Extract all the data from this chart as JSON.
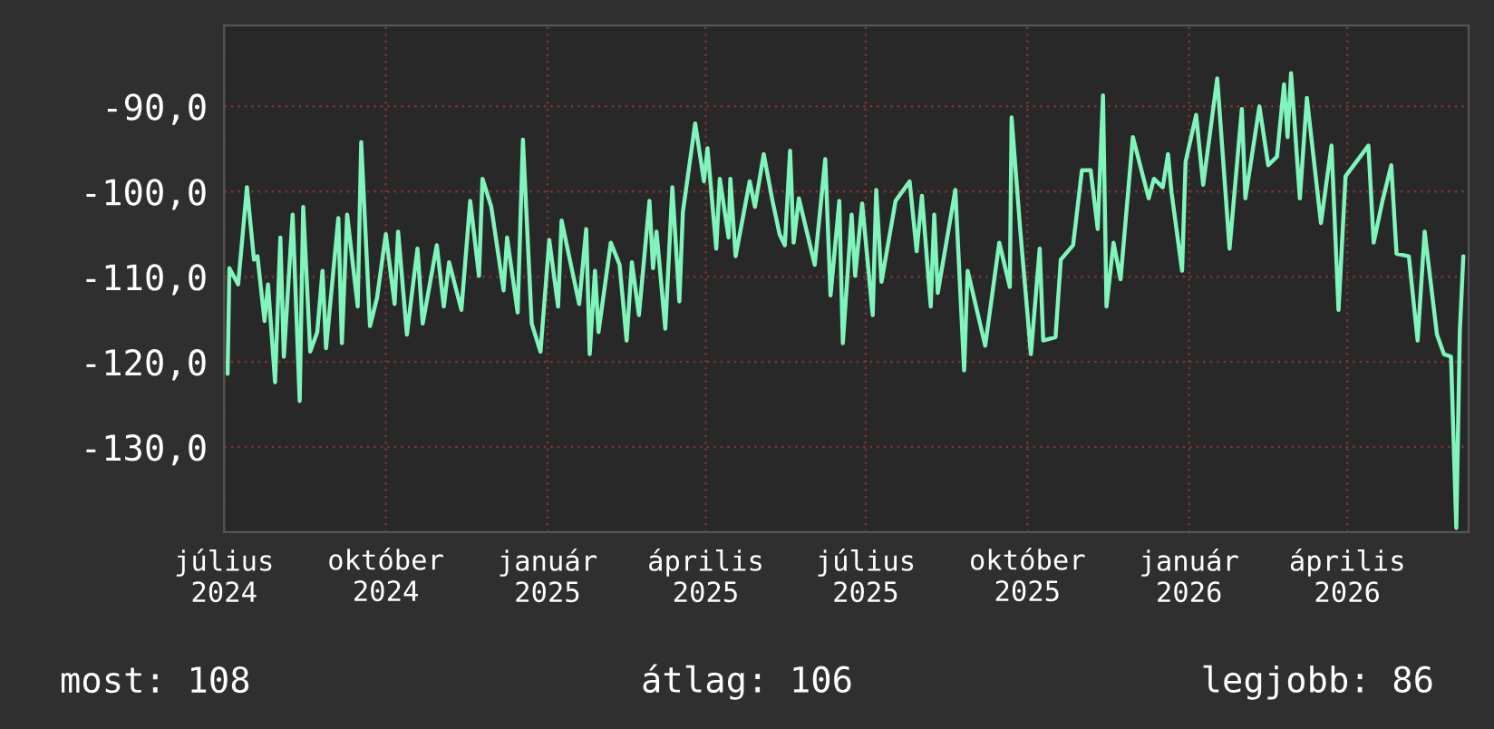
{
  "chart_data": {
    "type": "line",
    "x": [
      "2024-07-03",
      "2024-07-04",
      "2024-07-09",
      "2024-07-14",
      "2024-07-18",
      "2024-07-20",
      "2024-07-24",
      "2024-07-26",
      "2024-07-30",
      "2024-08-02",
      "2024-08-04",
      "2024-08-09",
      "2024-08-13",
      "2024-08-15",
      "2024-08-19",
      "2024-08-23",
      "2024-08-26",
      "2024-08-28",
      "2024-09-04",
      "2024-09-06",
      "2024-09-09",
      "2024-09-15",
      "2024-09-17",
      "2024-09-22",
      "2024-09-26",
      "2024-10-01",
      "2024-10-06",
      "2024-10-08",
      "2024-10-13",
      "2024-10-19",
      "2024-10-22",
      "2024-10-30",
      "2024-11-03",
      "2024-11-06",
      "2024-11-13",
      "2024-11-18",
      "2024-11-23",
      "2024-11-25",
      "2024-11-30",
      "2024-12-07",
      "2024-12-09",
      "2024-12-15",
      "2024-12-18",
      "2024-12-23",
      "2024-12-28",
      "2025-01-02",
      "2025-01-07",
      "2025-01-09",
      "2025-01-19",
      "2025-01-23",
      "2025-01-25",
      "2025-01-28",
      "2025-01-30",
      "2025-02-06",
      "2025-02-11",
      "2025-02-15",
      "2025-02-18",
      "2025-02-22",
      "2025-02-28",
      "2025-03-02",
      "2025-03-04",
      "2025-03-09",
      "2025-03-13",
      "2025-03-17",
      "2025-03-19",
      "2025-03-26",
      "2025-03-31",
      "2025-04-02",
      "2025-04-07",
      "2025-04-09",
      "2025-04-14",
      "2025-04-15",
      "2025-04-18",
      "2025-04-26",
      "2025-04-29",
      "2025-05-04",
      "2025-05-09",
      "2025-05-13",
      "2025-05-16",
      "2025-05-19",
      "2025-05-21",
      "2025-05-24",
      "2025-06-02",
      "2025-06-08",
      "2025-06-11",
      "2025-06-16",
      "2025-06-18",
      "2025-06-23",
      "2025-06-25",
      "2025-06-29",
      "2025-07-05",
      "2025-07-07",
      "2025-07-10",
      "2025-07-18",
      "2025-07-26",
      "2025-07-30",
      "2025-08-02",
      "2025-08-07",
      "2025-08-09",
      "2025-08-11",
      "2025-08-21",
      "2025-08-26",
      "2025-08-28",
      "2025-09-07",
      "2025-09-15",
      "2025-09-21",
      "2025-09-22",
      "2025-09-27",
      "2025-10-03",
      "2025-10-08",
      "2025-10-10",
      "2025-10-17",
      "2025-10-20",
      "2025-10-27",
      "2025-11-01",
      "2025-11-06",
      "2025-11-10",
      "2025-11-13",
      "2025-11-15",
      "2025-11-19",
      "2025-11-23",
      "2025-11-30",
      "2025-12-09",
      "2025-12-12",
      "2025-12-17",
      "2025-12-20",
      "2025-12-22",
      "2025-12-28",
      "2025-12-30",
      "2026-01-05",
      "2026-01-09",
      "2026-01-17",
      "2026-01-24",
      "2026-01-31",
      "2026-02-02",
      "2026-02-10",
      "2026-02-15",
      "2026-02-20",
      "2026-02-24",
      "2026-02-26",
      "2026-02-28",
      "2026-03-05",
      "2026-03-09",
      "2026-03-17",
      "2026-03-23",
      "2026-03-27",
      "2026-03-31",
      "2026-04-13",
      "2026-04-16",
      "2026-04-21",
      "2026-04-26",
      "2026-04-29",
      "2026-05-06",
      "2026-05-11",
      "2026-05-15",
      "2026-05-22",
      "2026-05-26",
      "2026-05-30",
      "2026-06-02",
      "2026-06-04",
      "2026-06-06"
    ],
    "series": [
      {
        "color": "#80f5bb",
        "values": [
          -121.4,
          -109.0,
          -110.9,
          -99.5,
          -108.0,
          -107.6,
          -115.2,
          -110.9,
          -122.4,
          -105.4,
          -119.4,
          -102.7,
          -124.6,
          -101.8,
          -118.8,
          -116.5,
          -109.3,
          -118.4,
          -103.1,
          -117.8,
          -102.7,
          -113.5,
          -94.2,
          -115.8,
          -112.5,
          -105.0,
          -113.2,
          -104.7,
          -116.8,
          -106.7,
          -115.5,
          -106.3,
          -113.5,
          -108.3,
          -113.9,
          -101.1,
          -109.9,
          -98.5,
          -101.8,
          -111.6,
          -105.4,
          -114.2,
          -93.9,
          -115.5,
          -118.8,
          -105.7,
          -113.5,
          -103.4,
          -113.2,
          -104.4,
          -119.1,
          -109.3,
          -116.5,
          -106.0,
          -108.6,
          -117.5,
          -108.3,
          -114.5,
          -101.1,
          -109.0,
          -104.7,
          -116.1,
          -99.5,
          -112.9,
          -102.4,
          -92.0,
          -98.8,
          -94.9,
          -106.7,
          -98.5,
          -105.4,
          -98.5,
          -107.6,
          -98.8,
          -101.8,
          -95.6,
          -101.1,
          -105.0,
          -106.3,
          -95.2,
          -106.0,
          -100.8,
          -108.6,
          -96.2,
          -112.2,
          -101.1,
          -117.8,
          -102.7,
          -109.9,
          -101.4,
          -114.5,
          -99.8,
          -110.6,
          -101.1,
          -98.8,
          -107.0,
          -100.5,
          -113.5,
          -102.7,
          -111.9,
          -99.8,
          -121.0,
          -109.3,
          -118.1,
          -106.0,
          -111.2,
          -91.3,
          -104.7,
          -119.1,
          -106.7,
          -117.5,
          -117.1,
          -108.0,
          -106.3,
          -97.5,
          -97.5,
          -104.4,
          -88.7,
          -113.5,
          -106.0,
          -110.3,
          -93.6,
          -100.8,
          -98.5,
          -99.5,
          -95.6,
          -100.1,
          -109.3,
          -96.5,
          -91.0,
          -99.2,
          -86.7,
          -106.7,
          -90.3,
          -100.8,
          -90.0,
          -96.9,
          -95.9,
          -87.4,
          -93.6,
          -86.1,
          -100.8,
          -89.0,
          -103.7,
          -94.6,
          -113.9,
          -98.2,
          -94.6,
          -106.0,
          -101.1,
          -96.9,
          -107.3,
          -107.6,
          -117.5,
          -104.7,
          -116.8,
          -119.1,
          -119.4,
          -139.5,
          -116.5,
          -107.6
        ]
      }
    ],
    "xlim": [
      "2024-07-01",
      "2026-06-09"
    ],
    "xticks": [
      {
        "value": "2024-07-01",
        "label": "július 2024"
      },
      {
        "value": "2024-10-01",
        "label": "október 2024"
      },
      {
        "value": "2025-01-01",
        "label": "január 2025"
      },
      {
        "value": "2025-04-01",
        "label": "április 2025"
      },
      {
        "value": "2025-07-01",
        "label": "július 2025"
      },
      {
        "value": "2025-10-01",
        "label": "október 2025"
      },
      {
        "value": "2026-01-01",
        "label": "január 2026"
      },
      {
        "value": "2026-04-01",
        "label": "április 2026"
      }
    ],
    "ylim": [
      -140,
      -80.5
    ],
    "yticks": [
      {
        "value": -130,
        "label": "-130,0"
      },
      {
        "value": -120,
        "label": "-120,0"
      },
      {
        "value": -110,
        "label": "-110,0"
      },
      {
        "value": -100,
        "label": "-100,0"
      },
      {
        "value": -90,
        "label": "-90,0"
      }
    ],
    "grid": true,
    "annotations": [
      "most: 108",
      "átlag: 106",
      "legjobb: 86"
    ]
  }
}
